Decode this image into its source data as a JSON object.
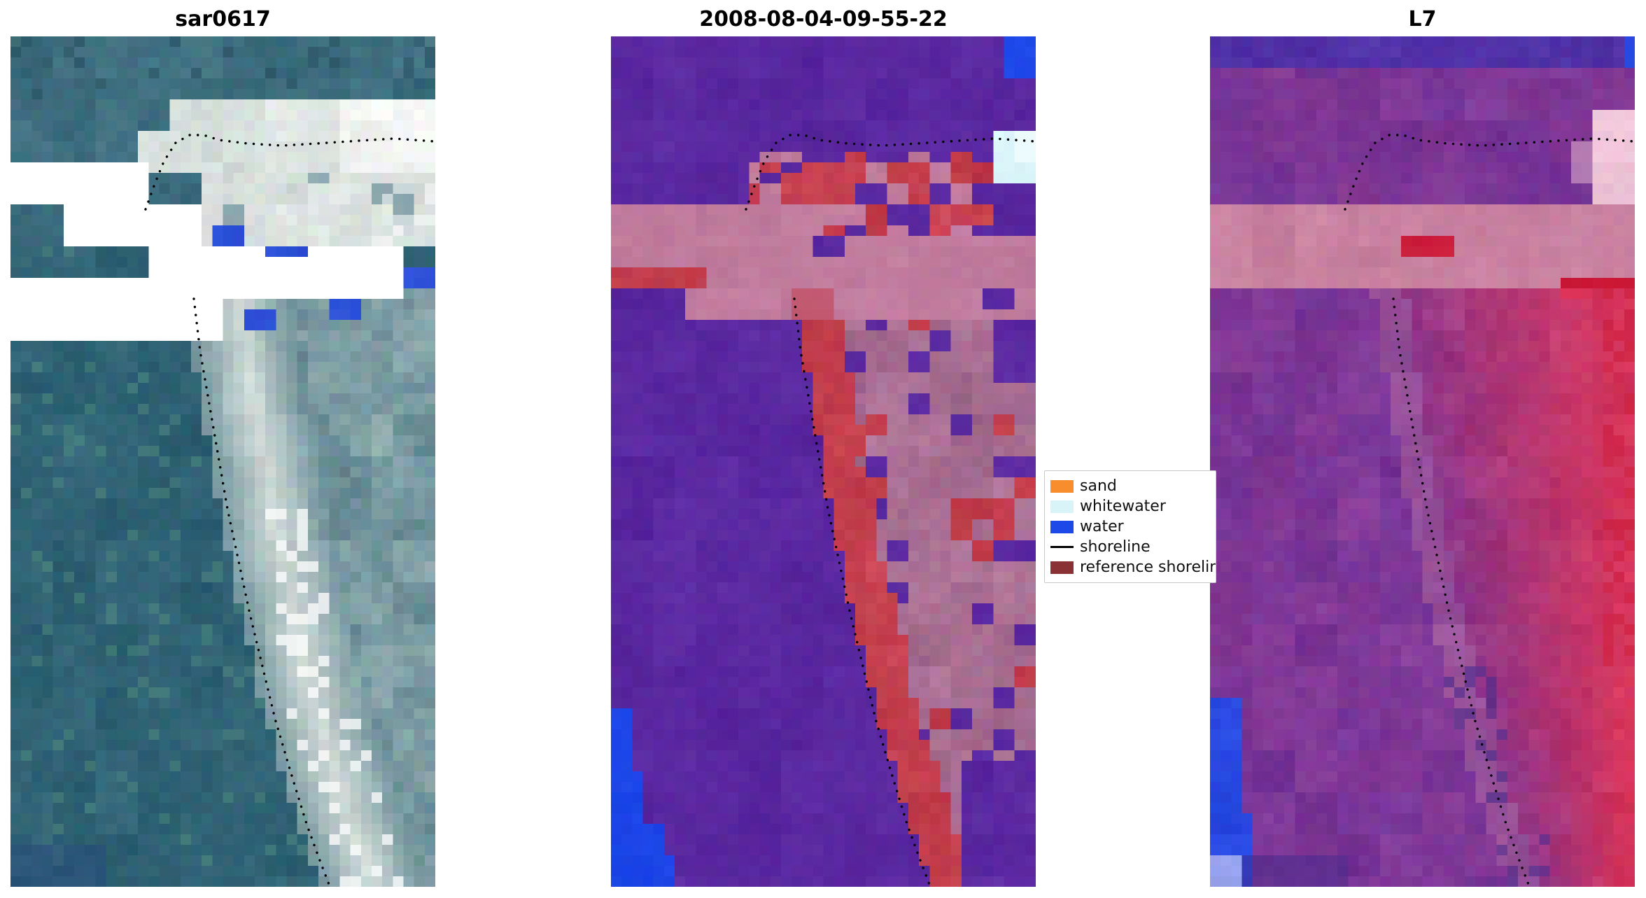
{
  "figure": {
    "background": "#ffffff",
    "panels": [
      {
        "id": "sar",
        "title": "sar0617",
        "kind": "SAR satellite image"
      },
      {
        "id": "classified",
        "title": "2008-08-04-09-55-22",
        "kind": "classified image"
      },
      {
        "id": "l7",
        "title": "L7",
        "kind": "Landsat 7 image"
      }
    ],
    "legend": {
      "items": [
        {
          "label": "sand",
          "swatch": "patch",
          "color": "#f78d2c"
        },
        {
          "label": "whitewater",
          "swatch": "patch",
          "color": "#d9f4f9"
        },
        {
          "label": "water",
          "swatch": "patch",
          "color": "#1c49e8"
        },
        {
          "label": "shoreline",
          "swatch": "line",
          "color": "#000000"
        },
        {
          "label": "reference shoreline",
          "swatch": "patch",
          "color": "#8a3136"
        }
      ]
    },
    "shoreline_annotation": "black dotted line overlaid on all three panels",
    "palette": {
      "sar": {
        "teal": "#3f6f80",
        "teal_dark": "#2f6274",
        "sand": "#d0dad6",
        "pale_right": "#b8c8c6",
        "white": "#ffffff",
        "blue_patch": "#2c50d8",
        "navy_corner": "#28467e",
        "green_speckle": "#5a9682"
      },
      "classified": {
        "purple": "#5a28a0",
        "mauve": "#c17c9e",
        "mauve_dusty": "#a86e92",
        "red": "#c43f4e",
        "blue": "#1c46e8",
        "whitewater": "#d9f3f8"
      },
      "l7": {
        "purple": "#6a2f96",
        "magenta": "#8f3e96",
        "rose": "#c8809f",
        "red": "#d8365c",
        "crimson": "#cc1a38",
        "band_red": "#cc1e3c",
        "pink": "#eec3d7",
        "blue": "#2848e1",
        "lavender": "#96a0eb",
        "dark_navy": "#42288a"
      },
      "shoreline": "#000000"
    }
  },
  "chart_data": [
    {
      "type": "heatmap",
      "title": "sar0617",
      "description": "Pixelated SAR coastal image: teal/slate water, bright whitish sand spit running diagonally to bottom right, pale horizontal band near top, stepped pure-white no-data gaps across upper third, small royal-blue water patches, black dotted detected shoreline.",
      "axes": "off",
      "grid": false
    },
    {
      "type": "heatmap",
      "title": "2008-08-04-09-55-22",
      "description": "Classified scene: dark purple background (water/other), rose-mauve horizontal band, crimson reference-shoreline strip following the sand spit, dusty-pink beach area on the right, bright blue water patches in top-right and bottom-left corners, light-cyan whitewater patch at top right, black dotted shoreline.",
      "legend_entries": [
        "sand",
        "whitewater",
        "water",
        "shoreline",
        "reference shoreline"
      ],
      "legend_position": "right of panel",
      "axes": "off",
      "grid": false
    },
    {
      "type": "heatmap",
      "title": "L7",
      "description": "Landsat 7 false-colour scene in purple/magenta tones: rose band across upper third with bright red blocks, red/salmon beach region widening down the right side, blue patch bottom-left with lavender corner, blue and pale-pink patches top-right, black dotted shoreline.",
      "axes": "off",
      "grid": false
    }
  ]
}
